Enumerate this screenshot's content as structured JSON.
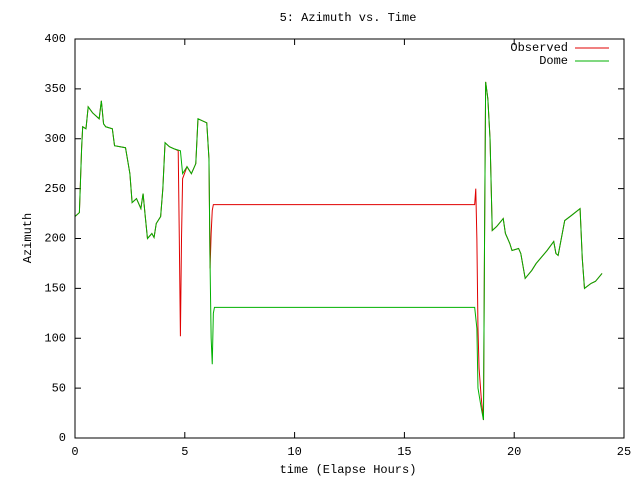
{
  "chart_data": {
    "type": "line",
    "title": "5: Azimuth vs. Time",
    "xlabel": "time (Elapse Hours)",
    "ylabel": "Azimuth",
    "xlim": [
      0,
      25
    ],
    "xticks": [
      0,
      5,
      10,
      15,
      20,
      25
    ],
    "ylim": [
      0,
      400
    ],
    "yticks": [
      0,
      50,
      100,
      150,
      200,
      250,
      300,
      350,
      400
    ],
    "legend": "upper right",
    "series": [
      {
        "name": "Observed",
        "color": "#e00000",
        "x": [
          0,
          0.2,
          0.3,
          0.35,
          0.5,
          0.6,
          0.8,
          1.1,
          1.2,
          1.3,
          1.4,
          1.7,
          1.8,
          2.3,
          2.5,
          2.6,
          2.8,
          3.0,
          3.1,
          3.2,
          3.3,
          3.5,
          3.6,
          3.7,
          3.9,
          4.0,
          4.1,
          4.3,
          4.5,
          4.7,
          4.75,
          4.8,
          4.85,
          4.9,
          5.1,
          5.3,
          5.5,
          5.6,
          5.8,
          6.0,
          6.1,
          6.15,
          6.2,
          6.25,
          6.3,
          18.2,
          18.25,
          18.3,
          18.35,
          18.4,
          18.5,
          18.6,
          18.65,
          18.7,
          18.8,
          18.9,
          19.0,
          19.2,
          19.5,
          19.6,
          19.8,
          19.9,
          20.2,
          20.3,
          20.5,
          20.8,
          21.0,
          21.5,
          21.8,
          21.9,
          22.0,
          22.3,
          22.6,
          23.0,
          23.1,
          23.2,
          23.5,
          23.7,
          24.0
        ],
        "values": [
          222,
          226,
          290,
          312,
          310,
          332,
          326,
          320,
          338,
          315,
          312,
          310,
          293,
          291,
          265,
          236,
          240,
          230,
          245,
          222,
          200,
          205,
          201,
          215,
          222,
          250,
          296,
          292,
          290,
          288,
          200,
          102,
          200,
          260,
          272,
          265,
          275,
          320,
          318,
          316,
          280,
          170,
          205,
          228,
          234,
          234,
          250,
          200,
          110,
          70,
          40,
          18,
          200,
          357,
          340,
          300,
          208,
          212,
          220,
          205,
          195,
          188,
          190,
          185,
          160,
          168,
          175,
          188,
          197,
          185,
          183,
          218,
          223,
          230,
          180,
          150,
          155,
          157,
          165
        ]
      },
      {
        "name": "Dome",
        "color": "#00b000",
        "x": [
          0,
          0.2,
          0.3,
          0.35,
          0.5,
          0.6,
          0.8,
          1.1,
          1.2,
          1.3,
          1.4,
          1.7,
          1.8,
          2.3,
          2.5,
          2.6,
          2.8,
          3.0,
          3.1,
          3.2,
          3.3,
          3.5,
          3.6,
          3.7,
          3.9,
          4.0,
          4.1,
          4.3,
          4.5,
          4.8,
          4.9,
          5.1,
          5.3,
          5.5,
          5.6,
          5.8,
          6.0,
          6.1,
          6.15,
          6.2,
          6.25,
          6.3,
          6.35,
          18.2,
          18.3,
          18.35,
          18.5,
          18.6,
          18.65,
          18.7,
          18.8,
          18.9,
          19.0,
          19.2,
          19.5,
          19.6,
          19.8,
          19.9,
          20.2,
          20.3,
          20.5,
          20.8,
          21.0,
          21.5,
          21.8,
          21.9,
          22.0,
          22.3,
          22.6,
          23.0,
          23.1,
          23.2,
          23.5,
          23.7,
          24.0
        ],
        "values": [
          222,
          226,
          290,
          312,
          310,
          332,
          326,
          320,
          338,
          315,
          312,
          310,
          293,
          291,
          265,
          236,
          240,
          230,
          245,
          222,
          200,
          205,
          201,
          215,
          222,
          250,
          296,
          292,
          290,
          288,
          265,
          272,
          265,
          275,
          320,
          318,
          316,
          280,
          175,
          100,
          74,
          125,
          131,
          131,
          110,
          50,
          30,
          18,
          200,
          357,
          340,
          300,
          208,
          212,
          220,
          205,
          195,
          188,
          190,
          185,
          160,
          168,
          175,
          188,
          197,
          185,
          183,
          218,
          223,
          230,
          180,
          150,
          155,
          157,
          165
        ]
      }
    ]
  }
}
